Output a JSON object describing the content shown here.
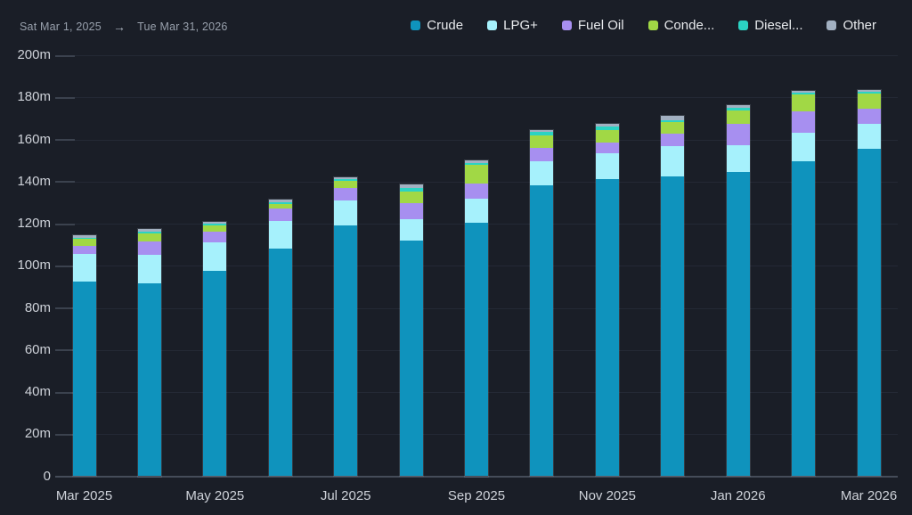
{
  "header": {
    "date_range": {
      "start": "Sat Mar 1, 2025",
      "arrow": "→",
      "end": "Tue Mar 31, 2026"
    }
  },
  "legend": {
    "items": [
      {
        "label": "Crude",
        "color": "#0f93bd"
      },
      {
        "label": "LPG+",
        "color": "#a6f1fc"
      },
      {
        "label": "Fuel Oil",
        "color": "#a78ff0"
      },
      {
        "label": "Conde...",
        "color": "#a1d845"
      },
      {
        "label": "Diesel...",
        "color": "#2bd3c3"
      },
      {
        "label": "Other",
        "color": "#a2b0c1"
      }
    ]
  },
  "chart_data": {
    "type": "bar",
    "stacked": true,
    "unit": "m",
    "x": [
      "Mar 2025",
      "Apr 2025",
      "May 2025",
      "Jun 2025",
      "Jul 2025",
      "Aug 2025",
      "Sep 2025",
      "Oct 2025",
      "Nov 2025",
      "Dec 2025",
      "Jan 2026",
      "Feb 2026",
      "Mar 2026"
    ],
    "x_tick_labels": [
      "Mar 2025",
      "May 2025",
      "Jul 2025",
      "Sep 2025",
      "Nov 2025",
      "Jan 2026",
      "Mar 2026"
    ],
    "series": [
      {
        "name": "Crude",
        "color": "#0f93bd",
        "values": [
          92.5,
          91.7,
          97.5,
          108.0,
          119.2,
          111.8,
          120.3,
          138.0,
          141.3,
          142.5,
          144.6,
          149.5,
          155.5
        ]
      },
      {
        "name": "LPG+",
        "color": "#a6f1fc",
        "values": [
          13.1,
          13.5,
          13.6,
          13.3,
          11.8,
          10.1,
          11.5,
          11.6,
          12.2,
          14.4,
          12.6,
          13.7,
          11.9
        ]
      },
      {
        "name": "Fuel Oil",
        "color": "#a78ff0",
        "values": [
          3.8,
          6.3,
          4.9,
          5.8,
          5.9,
          7.7,
          7.4,
          6.2,
          5.0,
          5.9,
          10.2,
          10.0,
          7.3
        ]
      },
      {
        "name": "Conde...",
        "color": "#a1d845",
        "values": [
          3.3,
          3.7,
          3.0,
          2.4,
          3.4,
          5.8,
          8.7,
          5.9,
          5.8,
          5.3,
          6.5,
          8.0,
          7.0
        ]
      },
      {
        "name": "Diesel...",
        "color": "#2bd3c3",
        "values": [
          0.6,
          1.0,
          0.8,
          0.7,
          0.7,
          1.7,
          0.7,
          1.7,
          1.7,
          1.1,
          1.0,
          0.9,
          0.8
        ]
      },
      {
        "name": "Other",
        "color": "#a2b0c1",
        "values": [
          1.2,
          1.3,
          1.2,
          1.3,
          1.2,
          1.4,
          1.4,
          1.2,
          1.3,
          2.0,
          1.3,
          0.8,
          1.0
        ]
      }
    ],
    "totals": [
      114.5,
      117.5,
      121.0,
      131.5,
      142.2,
      138.5,
      150.0,
      164.6,
      167.3,
      171.2,
      176.2,
      182.9,
      183.5
    ],
    "ylim": [
      0,
      200
    ],
    "y_tick_labels": [
      "0",
      "20m",
      "40m",
      "60m",
      "80m",
      "100m",
      "120m",
      "140m",
      "160m",
      "180m",
      "200m"
    ],
    "grid": true,
    "legend_position": "top-right"
  },
  "colors": {
    "background": "#1a1e27",
    "gridline": "#242935",
    "baseline": "#454c59",
    "tick": "#3b424e",
    "axis_label": "#ced2d9",
    "date_text": "#98a0ac",
    "legend_text": "#e8eaed"
  }
}
